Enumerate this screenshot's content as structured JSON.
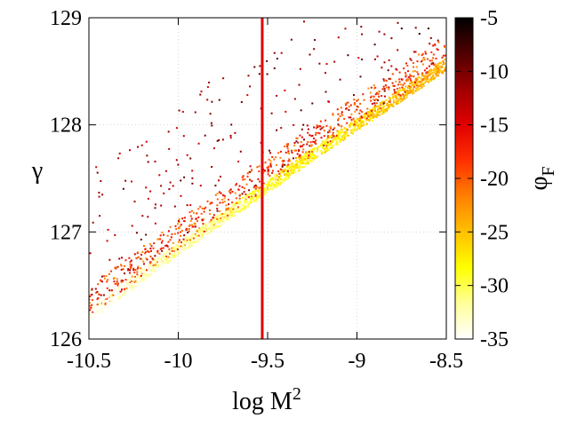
{
  "chart_data": {
    "type": "scatter",
    "title": "",
    "xlabel_base": "log M",
    "xlabel_sup": "2",
    "ylabel": "γ",
    "colorbar_label_base": "φ",
    "colorbar_label_sub": "F",
    "xlim": [
      -10.5,
      -8.5
    ],
    "ylim": [
      126,
      129
    ],
    "x_ticks": [
      -10.5,
      -10,
      -9.5,
      -9,
      -8.5
    ],
    "x_tick_labels": [
      "-10.5",
      "-10",
      "-9.5",
      "-9",
      "-8.5"
    ],
    "y_ticks": [
      126,
      127,
      128,
      129
    ],
    "y_tick_labels": [
      "126",
      "127",
      "128",
      "129"
    ],
    "color_range": [
      -35,
      -5
    ],
    "color_ticks": [
      -5,
      -10,
      -15,
      -20,
      -25,
      -30,
      -35
    ],
    "color_tick_labels": [
      "-5",
      "-10",
      "-15",
      "-20",
      "-25",
      "-30",
      "-35"
    ],
    "colormap": [
      "#ffffff",
      "#ffff99",
      "#ffff00",
      "#ffc000",
      "#ff8000",
      "#ff3000",
      "#e00000",
      "#a00000",
      "#500000",
      "#000000"
    ],
    "grid": true,
    "vertical_line": {
      "x": -9.53,
      "color": "#e00000"
    },
    "band_points": [
      {
        "x": -10.5,
        "y": 126.15,
        "phi": -33
      },
      {
        "x": -10.25,
        "y": 126.47,
        "phi": -31
      },
      {
        "x": -10.0,
        "y": 126.78,
        "phi": -30
      },
      {
        "x": -9.75,
        "y": 127.07,
        "phi": -29
      },
      {
        "x": -9.5,
        "y": 127.36,
        "phi": -27
      },
      {
        "x": -9.25,
        "y": 127.66,
        "phi": -26
      },
      {
        "x": -9.0,
        "y": 127.94,
        "phi": -25
      },
      {
        "x": -8.75,
        "y": 128.22,
        "phi": -23
      },
      {
        "x": -8.5,
        "y": 128.5,
        "phi": -22
      }
    ],
    "outlier_points": [
      {
        "x": -10.44,
        "y": 127.15,
        "phi": -12
      },
      {
        "x": -10.33,
        "y": 126.75,
        "phi": -12
      },
      {
        "x": -10.2,
        "y": 127.15,
        "phi": -12
      },
      {
        "x": -10.05,
        "y": 127.4,
        "phi": -11
      },
      {
        "x": -9.95,
        "y": 127.25,
        "phi": -11
      },
      {
        "x": -9.85,
        "y": 127.9,
        "phi": -10
      },
      {
        "x": -9.78,
        "y": 127.85,
        "phi": -10
      },
      {
        "x": -9.65,
        "y": 127.75,
        "phi": -11
      },
      {
        "x": -9.45,
        "y": 127.95,
        "phi": -10
      },
      {
        "x": -9.3,
        "y": 128.0,
        "phi": -9
      },
      {
        "x": -9.25,
        "y": 128.2,
        "phi": -9
      },
      {
        "x": -9.05,
        "y": 128.65,
        "phi": -8
      },
      {
        "x": -8.98,
        "y": 128.45,
        "phi": -9
      },
      {
        "x": -8.9,
        "y": 128.75,
        "phi": -8
      },
      {
        "x": -8.85,
        "y": 128.2,
        "phi": -9
      },
      {
        "x": -8.75,
        "y": 128.9,
        "phi": -7
      },
      {
        "x": -8.65,
        "y": 128.85,
        "phi": -7
      },
      {
        "x": -8.6,
        "y": 128.9,
        "phi": -7
      }
    ]
  }
}
